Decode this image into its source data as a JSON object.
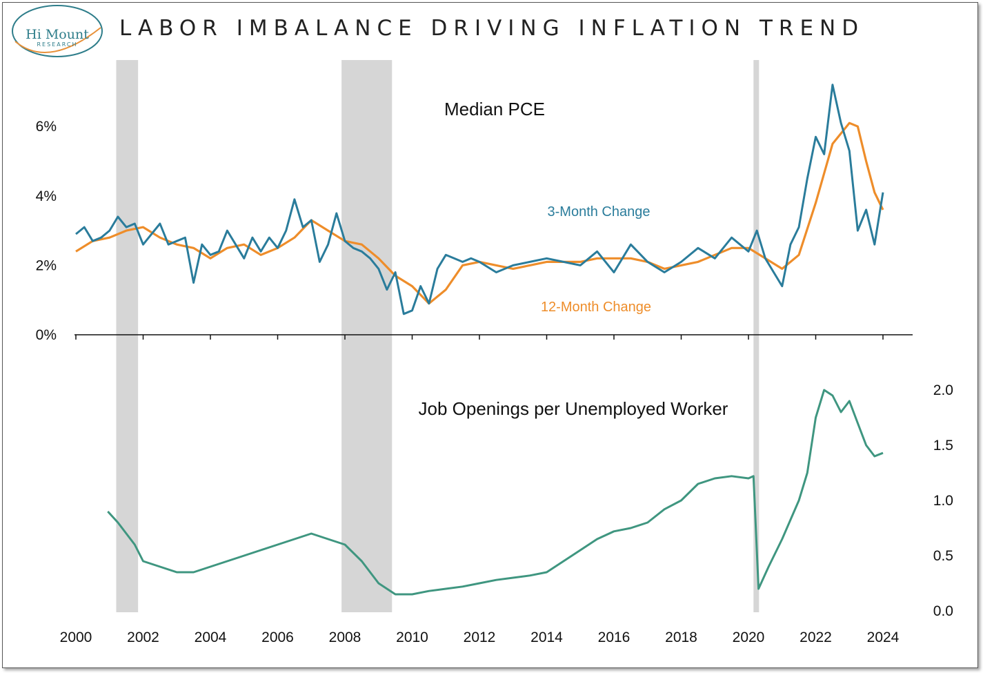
{
  "header": {
    "title": "LABOR IMBALANCE DRIVING INFLATION TREND",
    "logo_name": "Hi Mount",
    "logo_sub": "RESEARCH"
  },
  "colors": {
    "three_month": "#2a7c9b",
    "twelve_month": "#ee8d2a",
    "job_openings": "#3f9680",
    "recession": "#d6d6d6",
    "logo": "#2e7d8a",
    "logo_accent": "#e8913a"
  },
  "chart_data": [
    {
      "type": "line",
      "title": "Median PCE",
      "ylim": [
        0,
        8
      ],
      "xlim": [
        2000,
        2025
      ],
      "y_ticks": [
        "0%",
        "2%",
        "4%",
        "6%"
      ],
      "y_tick_values": [
        0,
        2,
        4,
        6
      ],
      "recessions": [
        [
          2001.2,
          2001.85
        ],
        [
          2007.9,
          2009.4
        ],
        [
          2020.15,
          2020.3
        ]
      ],
      "series": [
        {
          "name": "3-Month Change",
          "x": [
            2000.0,
            2000.25,
            2000.5,
            2000.75,
            2001.0,
            2001.25,
            2001.5,
            2001.75,
            2002.0,
            2002.25,
            2002.5,
            2002.75,
            2003.0,
            2003.25,
            2003.5,
            2003.75,
            2004.0,
            2004.25,
            2004.5,
            2004.75,
            2005.0,
            2005.25,
            2005.5,
            2005.75,
            2006.0,
            2006.25,
            2006.5,
            2006.75,
            2007.0,
            2007.25,
            2007.5,
            2007.75,
            2008.0,
            2008.25,
            2008.5,
            2008.75,
            2009.0,
            2009.25,
            2009.5,
            2009.75,
            2010.0,
            2010.25,
            2010.5,
            2010.75,
            2011.0,
            2011.25,
            2011.5,
            2011.75,
            2012.0,
            2012.5,
            2013.0,
            2013.5,
            2014.0,
            2014.5,
            2015.0,
            2015.5,
            2016.0,
            2016.5,
            2017.0,
            2017.5,
            2018.0,
            2018.5,
            2019.0,
            2019.5,
            2020.0,
            2020.25,
            2020.5,
            2020.75,
            2021.0,
            2021.25,
            2021.5,
            2021.75,
            2022.0,
            2022.25,
            2022.5,
            2022.75,
            2023.0,
            2023.25,
            2023.5,
            2023.75,
            2024.0
          ],
          "values": [
            2.9,
            3.1,
            2.7,
            2.8,
            3.0,
            3.4,
            3.1,
            3.2,
            2.6,
            2.9,
            3.2,
            2.6,
            2.7,
            2.8,
            1.5,
            2.6,
            2.3,
            2.4,
            3.0,
            2.6,
            2.2,
            2.8,
            2.4,
            2.8,
            2.5,
            3.0,
            3.9,
            3.1,
            3.3,
            2.1,
            2.6,
            3.5,
            2.7,
            2.5,
            2.4,
            2.2,
            1.9,
            1.3,
            1.8,
            0.6,
            0.7,
            1.4,
            0.9,
            1.9,
            2.3,
            2.2,
            2.1,
            2.2,
            2.1,
            1.8,
            2.0,
            2.1,
            2.2,
            2.1,
            2.0,
            2.4,
            1.8,
            2.6,
            2.1,
            1.8,
            2.1,
            2.5,
            2.2,
            2.8,
            2.4,
            3.0,
            2.2,
            1.8,
            1.4,
            2.6,
            3.1,
            4.5,
            5.7,
            5.2,
            7.2,
            6.1,
            5.3,
            3.0,
            3.6,
            2.6,
            4.1
          ]
        },
        {
          "name": "12-Month Change",
          "x": [
            2000.0,
            2000.5,
            2001.0,
            2001.5,
            2002.0,
            2002.5,
            2003.0,
            2003.5,
            2004.0,
            2004.5,
            2005.0,
            2005.5,
            2006.0,
            2006.5,
            2007.0,
            2007.5,
            2008.0,
            2008.5,
            2009.0,
            2009.5,
            2010.0,
            2010.5,
            2011.0,
            2011.5,
            2012.0,
            2012.5,
            2013.0,
            2013.5,
            2014.0,
            2014.5,
            2015.0,
            2015.5,
            2016.0,
            2016.5,
            2017.0,
            2017.5,
            2018.0,
            2018.5,
            2019.0,
            2019.5,
            2020.0,
            2020.5,
            2021.0,
            2021.5,
            2022.0,
            2022.5,
            2023.0,
            2023.25,
            2023.5,
            2023.75,
            2024.0
          ],
          "values": [
            2.4,
            2.7,
            2.8,
            3.0,
            3.1,
            2.8,
            2.6,
            2.5,
            2.2,
            2.5,
            2.6,
            2.3,
            2.5,
            2.8,
            3.3,
            3.0,
            2.7,
            2.6,
            2.2,
            1.7,
            1.4,
            0.9,
            1.3,
            2.0,
            2.1,
            2.0,
            1.9,
            2.0,
            2.1,
            2.1,
            2.1,
            2.2,
            2.2,
            2.2,
            2.1,
            1.9,
            2.0,
            2.1,
            2.3,
            2.5,
            2.5,
            2.2,
            1.9,
            2.3,
            3.8,
            5.5,
            6.1,
            6.0,
            5.0,
            4.1,
            3.6
          ]
        }
      ]
    },
    {
      "type": "line",
      "title": "Job Openings per Unemployed Worker",
      "ylim": [
        0,
        2.2
      ],
      "xlim": [
        2000,
        2025
      ],
      "y_ticks": [
        "0.0",
        "0.5",
        "1.0",
        "1.5",
        "2.0"
      ],
      "y_tick_values": [
        0,
        0.5,
        1.0,
        1.5,
        2.0
      ],
      "x_ticks": [
        "2000",
        "2002",
        "2004",
        "2006",
        "2008",
        "2010",
        "2012",
        "2014",
        "2016",
        "2018",
        "2020",
        "2022",
        "2024"
      ],
      "x_tick_values": [
        2000,
        2002,
        2004,
        2006,
        2008,
        2010,
        2012,
        2014,
        2016,
        2018,
        2020,
        2022,
        2024
      ],
      "recessions": [
        [
          2001.2,
          2001.85
        ],
        [
          2007.9,
          2009.4
        ],
        [
          2020.15,
          2020.3
        ]
      ],
      "series": [
        {
          "name": "Job Openings per Unemployed Worker",
          "x": [
            2000.95,
            2001.25,
            2001.5,
            2001.75,
            2002.0,
            2002.5,
            2003.0,
            2003.5,
            2004.0,
            2004.5,
            2005.0,
            2005.5,
            2006.0,
            2006.5,
            2007.0,
            2007.5,
            2008.0,
            2008.5,
            2009.0,
            2009.5,
            2010.0,
            2010.5,
            2011.0,
            2011.5,
            2012.0,
            2012.5,
            2013.0,
            2013.5,
            2014.0,
            2014.5,
            2015.0,
            2015.5,
            2016.0,
            2016.5,
            2017.0,
            2017.5,
            2018.0,
            2018.5,
            2019.0,
            2019.5,
            2020.0,
            2020.15,
            2020.3,
            2020.6,
            2021.0,
            2021.5,
            2021.75,
            2022.0,
            2022.25,
            2022.5,
            2022.75,
            2023.0,
            2023.25,
            2023.5,
            2023.75,
            2024.0
          ],
          "values": [
            0.9,
            0.8,
            0.7,
            0.6,
            0.45,
            0.4,
            0.35,
            0.35,
            0.4,
            0.45,
            0.5,
            0.55,
            0.6,
            0.65,
            0.7,
            0.65,
            0.6,
            0.45,
            0.25,
            0.15,
            0.15,
            0.18,
            0.2,
            0.22,
            0.25,
            0.28,
            0.3,
            0.32,
            0.35,
            0.45,
            0.55,
            0.65,
            0.72,
            0.75,
            0.8,
            0.92,
            1.0,
            1.15,
            1.2,
            1.22,
            1.2,
            1.22,
            0.2,
            0.4,
            0.65,
            1.0,
            1.25,
            1.75,
            2.0,
            1.95,
            1.8,
            1.9,
            1.7,
            1.5,
            1.4,
            1.43
          ]
        }
      ]
    }
  ],
  "labels": {
    "three_month": "3-Month Change",
    "twelve_month": "12-Month Change"
  }
}
